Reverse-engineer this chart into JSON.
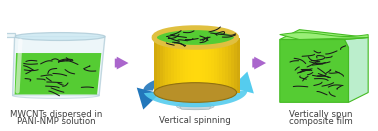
{
  "bg_color": "#ffffff",
  "text1_line1": "MWCNTs dispersed in",
  "text1_line2": "PANI-NMP solution",
  "text2": "Vertical spinning",
  "text3_line1": "Vertically spun",
  "text3_line2": "composite film",
  "text_color": "#404040",
  "text_fontsize": 6.2,
  "green_fill": "#55cc33",
  "green_light": "#99ee77",
  "beaker_glass": "#e8f4f8",
  "beaker_edge": "#b0ccd8",
  "cylinder_gold_mid": "#e8c860",
  "cylinder_gold_dark": "#c8a030",
  "cylinder_gold_light": "#f5e090",
  "cylinder_gold_edge": "#b08820",
  "arrow_purple": "#aa66cc",
  "arrow_blue_dark": "#2277bb",
  "arrow_blue_light": "#55ccee",
  "cnt_color": "#1a1a1a",
  "film_green": "#55cc33",
  "film_side": "#44bb22",
  "film_top": "#99ee77",
  "film_right_pale": "#bbeecc"
}
